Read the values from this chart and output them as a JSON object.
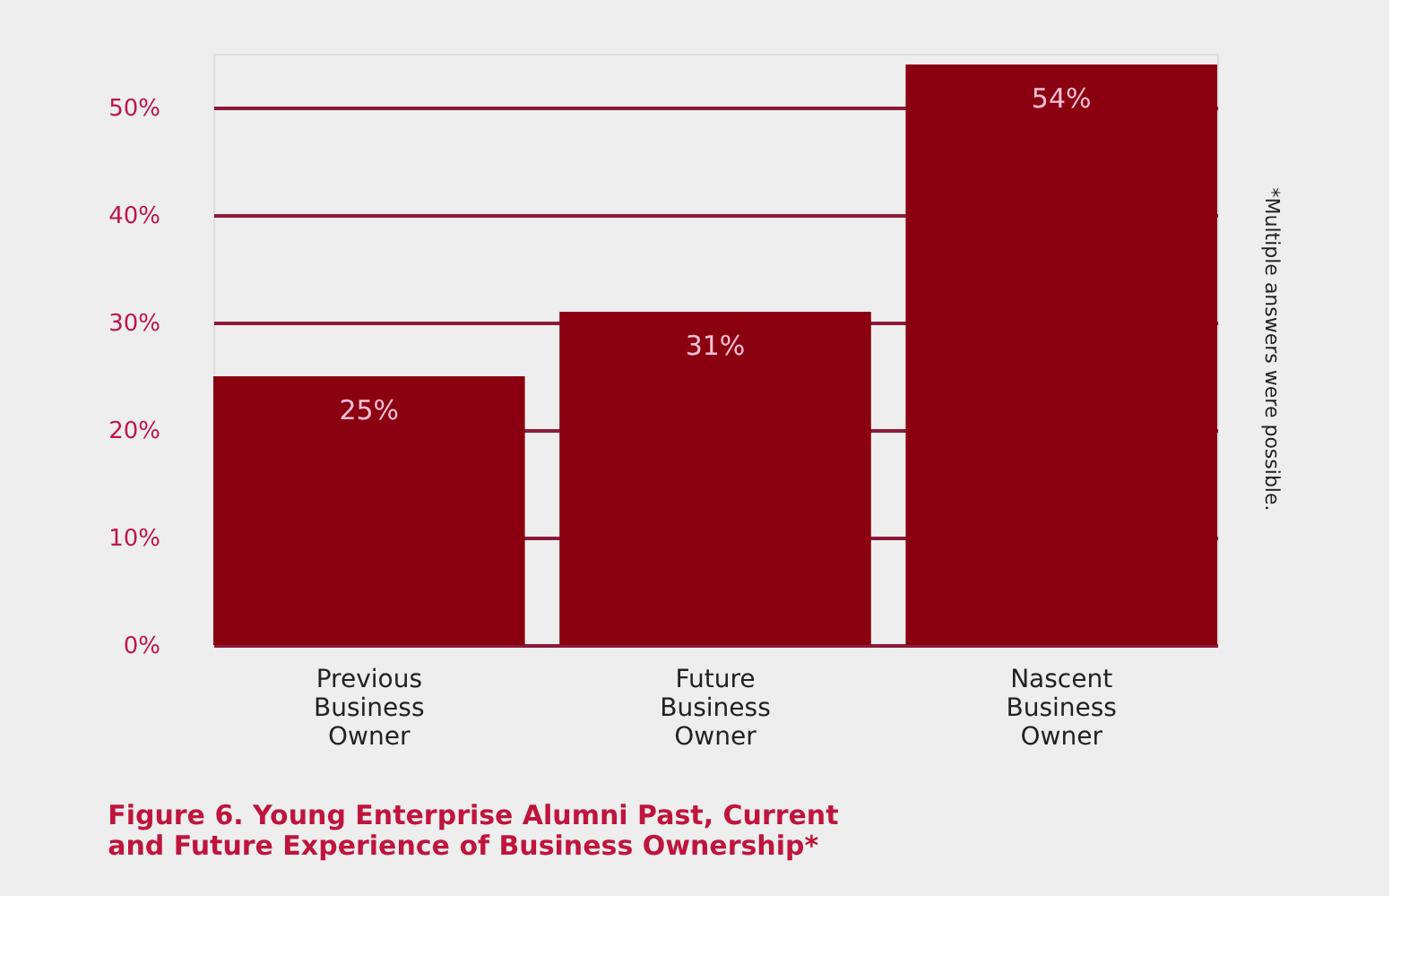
{
  "chart_data": {
    "type": "bar",
    "title": [
      "Figure 6. Young Enterprise Alumni Past, Current",
      "and Future Experience of Business Ownership*"
    ],
    "categories": [
      "Previous Business Owner",
      "Future Business Owner",
      "Nascent Business Owner"
    ],
    "values": [
      25,
      31,
      54
    ],
    "value_labels": [
      "25%",
      "31%",
      "54%"
    ],
    "color": "#8b0010",
    "ylim": [
      0,
      55
    ],
    "yticks": [
      {
        "value": 0,
        "label": "0%"
      },
      {
        "value": 10,
        "label": "10%"
      },
      {
        "value": 20,
        "label": "20%"
      },
      {
        "value": 30,
        "label": "30%"
      },
      {
        "value": 40,
        "label": "40%"
      },
      {
        "value": 50,
        "label": "50%"
      }
    ],
    "grid": "y",
    "annotations": [
      "*Multiple answers were possible."
    ]
  }
}
